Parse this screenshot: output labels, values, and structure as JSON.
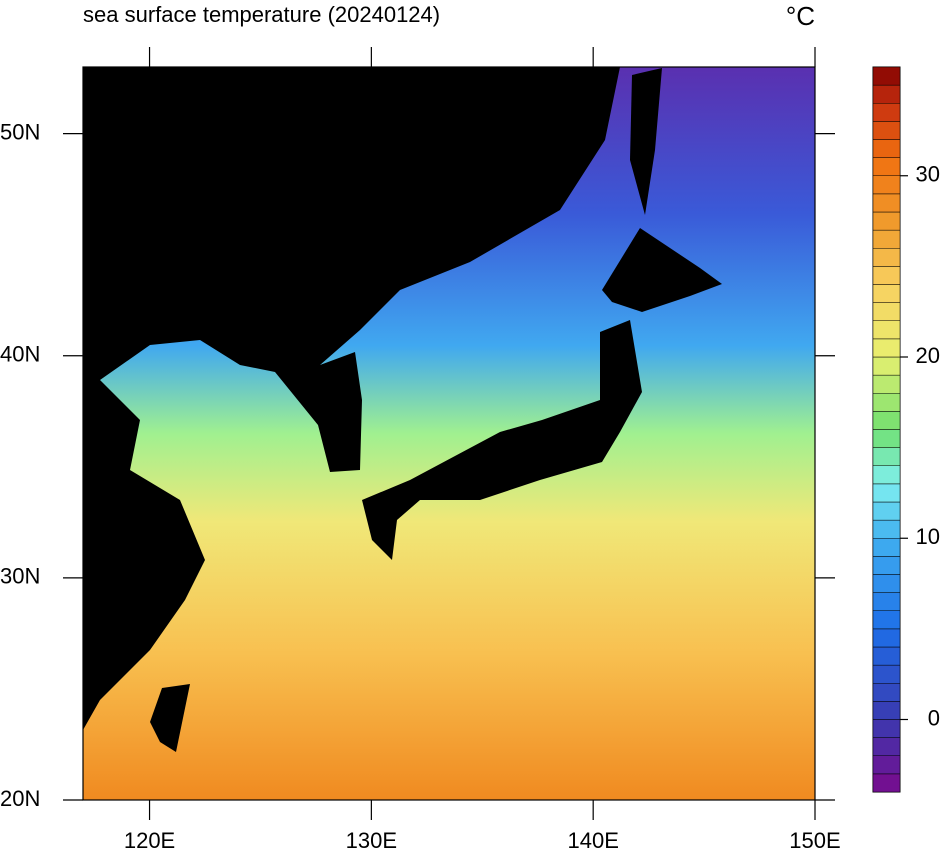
{
  "map": {
    "title": "sea surface temperature (20240124)",
    "unit": "°C",
    "lon_range": [
      117,
      150
    ],
    "lat_range": [
      20,
      53
    ],
    "lon_ticks": [
      {
        "value": 120,
        "label": "120E"
      },
      {
        "value": 130,
        "label": "130E"
      },
      {
        "value": 140,
        "label": "140E"
      },
      {
        "value": 150,
        "label": "150E"
      }
    ],
    "lat_ticks": [
      {
        "value": 20,
        "label": "20N"
      },
      {
        "value": 30,
        "label": "30N"
      },
      {
        "value": 40,
        "label": "40N"
      },
      {
        "value": 50,
        "label": "50N"
      }
    ],
    "colorbar": {
      "range": [
        -4,
        36
      ],
      "ticks": [
        0,
        10,
        20,
        30
      ],
      "levels": 40,
      "colormap": [
        {
          "value": -4,
          "color": "#7a0a8c"
        },
        {
          "value": 0,
          "color": "#3a3ab0"
        },
        {
          "value": 5,
          "color": "#1e6ee8"
        },
        {
          "value": 10,
          "color": "#40b0f0"
        },
        {
          "value": 13,
          "color": "#80f0f0"
        },
        {
          "value": 16,
          "color": "#70e070"
        },
        {
          "value": 20,
          "color": "#e8f070"
        },
        {
          "value": 24,
          "color": "#f8d060"
        },
        {
          "value": 27,
          "color": "#f0a030"
        },
        {
          "value": 31,
          "color": "#f07010"
        },
        {
          "value": 34,
          "color": "#c83010"
        },
        {
          "value": 36,
          "color": "#800000"
        }
      ]
    }
  }
}
